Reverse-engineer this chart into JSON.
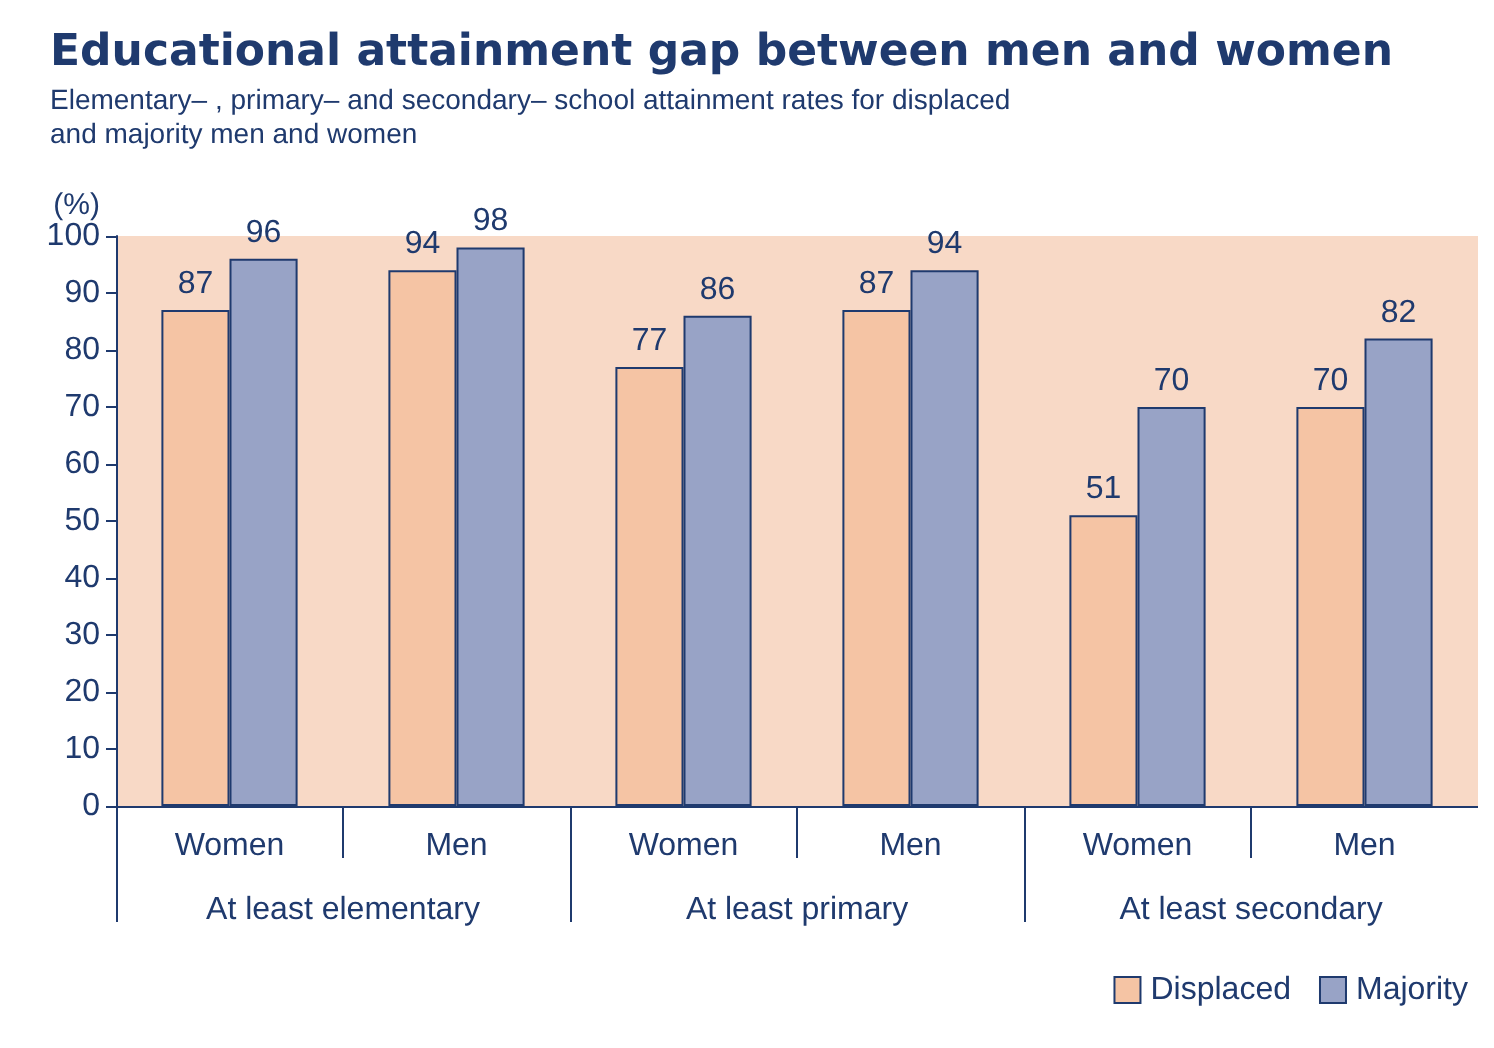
{
  "chart_data": {
    "type": "bar",
    "title": "Educational attainment gap between men and women",
    "subtitle": "Elementary– , primary– and secondary– school attainment rates for displaced\nand majority men and women",
    "ylabel": "(%)",
    "categories": [
      "Women",
      "Men",
      "Women",
      "Men",
      "Women",
      "Men"
    ],
    "annotations": [
      "At least elementary",
      "At least primary",
      "At least secondary"
    ],
    "series": [
      {
        "name": "Displaced",
        "color": "#f5c4a4",
        "values": [
          87,
          94,
          77,
          87,
          51,
          70
        ]
      },
      {
        "name": "Majority",
        "color": "#98a3c6",
        "values": [
          96,
          98,
          86,
          94,
          70,
          82
        ]
      }
    ],
    "ylim": [
      0,
      100
    ],
    "yticks": [
      0,
      10,
      20,
      30,
      40,
      50,
      60,
      70,
      80,
      90,
      100
    ],
    "data_labels": true,
    "legend": "bottom right",
    "grid": false
  }
}
